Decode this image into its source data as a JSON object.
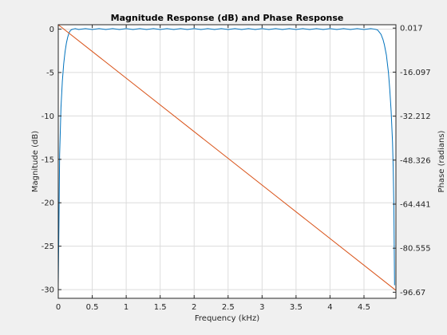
{
  "chart_data": {
    "type": "line",
    "title": "Magnitude Response (dB) and Phase Response",
    "xlabel": "Frequency (kHz)",
    "ylabel": "Magnitude (dB)",
    "y2label": "Phase (radians)",
    "xlim": [
      0,
      4.97
    ],
    "ylim": [
      -31,
      0.5
    ],
    "y2lim": [
      -98.9,
      1.25
    ],
    "xticks": [
      0,
      0.5,
      1,
      1.5,
      2,
      2.5,
      3,
      3.5,
      4,
      4.5
    ],
    "yticks": [
      0,
      -5,
      -10,
      -15,
      -20,
      -25,
      -30
    ],
    "y2ticks": [
      0.017,
      -16.097,
      -32.212,
      -48.326,
      -64.441,
      -80.555,
      -96.67
    ],
    "grid": true,
    "legend": false,
    "series": [
      {
        "axis": "left",
        "color": "#0072bd",
        "x": [
          0,
          0.01,
          0.02,
          0.04,
          0.06,
          0.08,
          0.1,
          0.12,
          0.14,
          0.16,
          0.18,
          0.2,
          0.22,
          0.25,
          0.3,
          0.4,
          0.5,
          0.6,
          0.7,
          0.8,
          0.9,
          1.0,
          1.1,
          1.2,
          1.3,
          1.4,
          1.5,
          1.6,
          1.7,
          1.8,
          1.9,
          2.0,
          2.1,
          2.2,
          2.3,
          2.4,
          2.5,
          2.6,
          2.7,
          2.8,
          2.9,
          3.0,
          3.1,
          3.2,
          3.3,
          3.4,
          3.5,
          3.6,
          3.7,
          3.8,
          3.9,
          4.0,
          4.1,
          4.2,
          4.3,
          4.4,
          4.5,
          4.6,
          4.65,
          4.7,
          4.72,
          4.75,
          4.78,
          4.8,
          4.83,
          4.86,
          4.88,
          4.9,
          4.92,
          4.93,
          4.94,
          4.95
        ],
        "values": [
          -29.5,
          -22.5,
          -14.5,
          -9.0,
          -6.0,
          -4.0,
          -2.6,
          -1.6,
          -0.9,
          -0.4,
          -0.15,
          -0.05,
          0.0,
          0.05,
          -0.05,
          0.05,
          -0.05,
          0.05,
          -0.05,
          0.05,
          -0.05,
          0.05,
          -0.05,
          0.05,
          -0.05,
          0.05,
          -0.05,
          0.05,
          -0.05,
          0.05,
          -0.05,
          0.05,
          -0.05,
          0.05,
          -0.05,
          0.05,
          -0.05,
          0.05,
          -0.05,
          0.05,
          -0.05,
          0.05,
          -0.05,
          0.05,
          -0.05,
          0.05,
          -0.05,
          0.05,
          -0.05,
          0.05,
          -0.05,
          0.05,
          -0.05,
          0.05,
          -0.05,
          0.05,
          -0.05,
          0.05,
          0.0,
          -0.1,
          -0.3,
          -0.6,
          -1.2,
          -1.8,
          -3.0,
          -5.0,
          -7.0,
          -9.5,
          -13.0,
          -16.0,
          -20.5,
          -29.5
        ]
      },
      {
        "axis": "right",
        "color": "#d95319",
        "x": [
          0,
          4.97
        ],
        "values": [
          1.25,
          -96.0
        ]
      }
    ]
  }
}
